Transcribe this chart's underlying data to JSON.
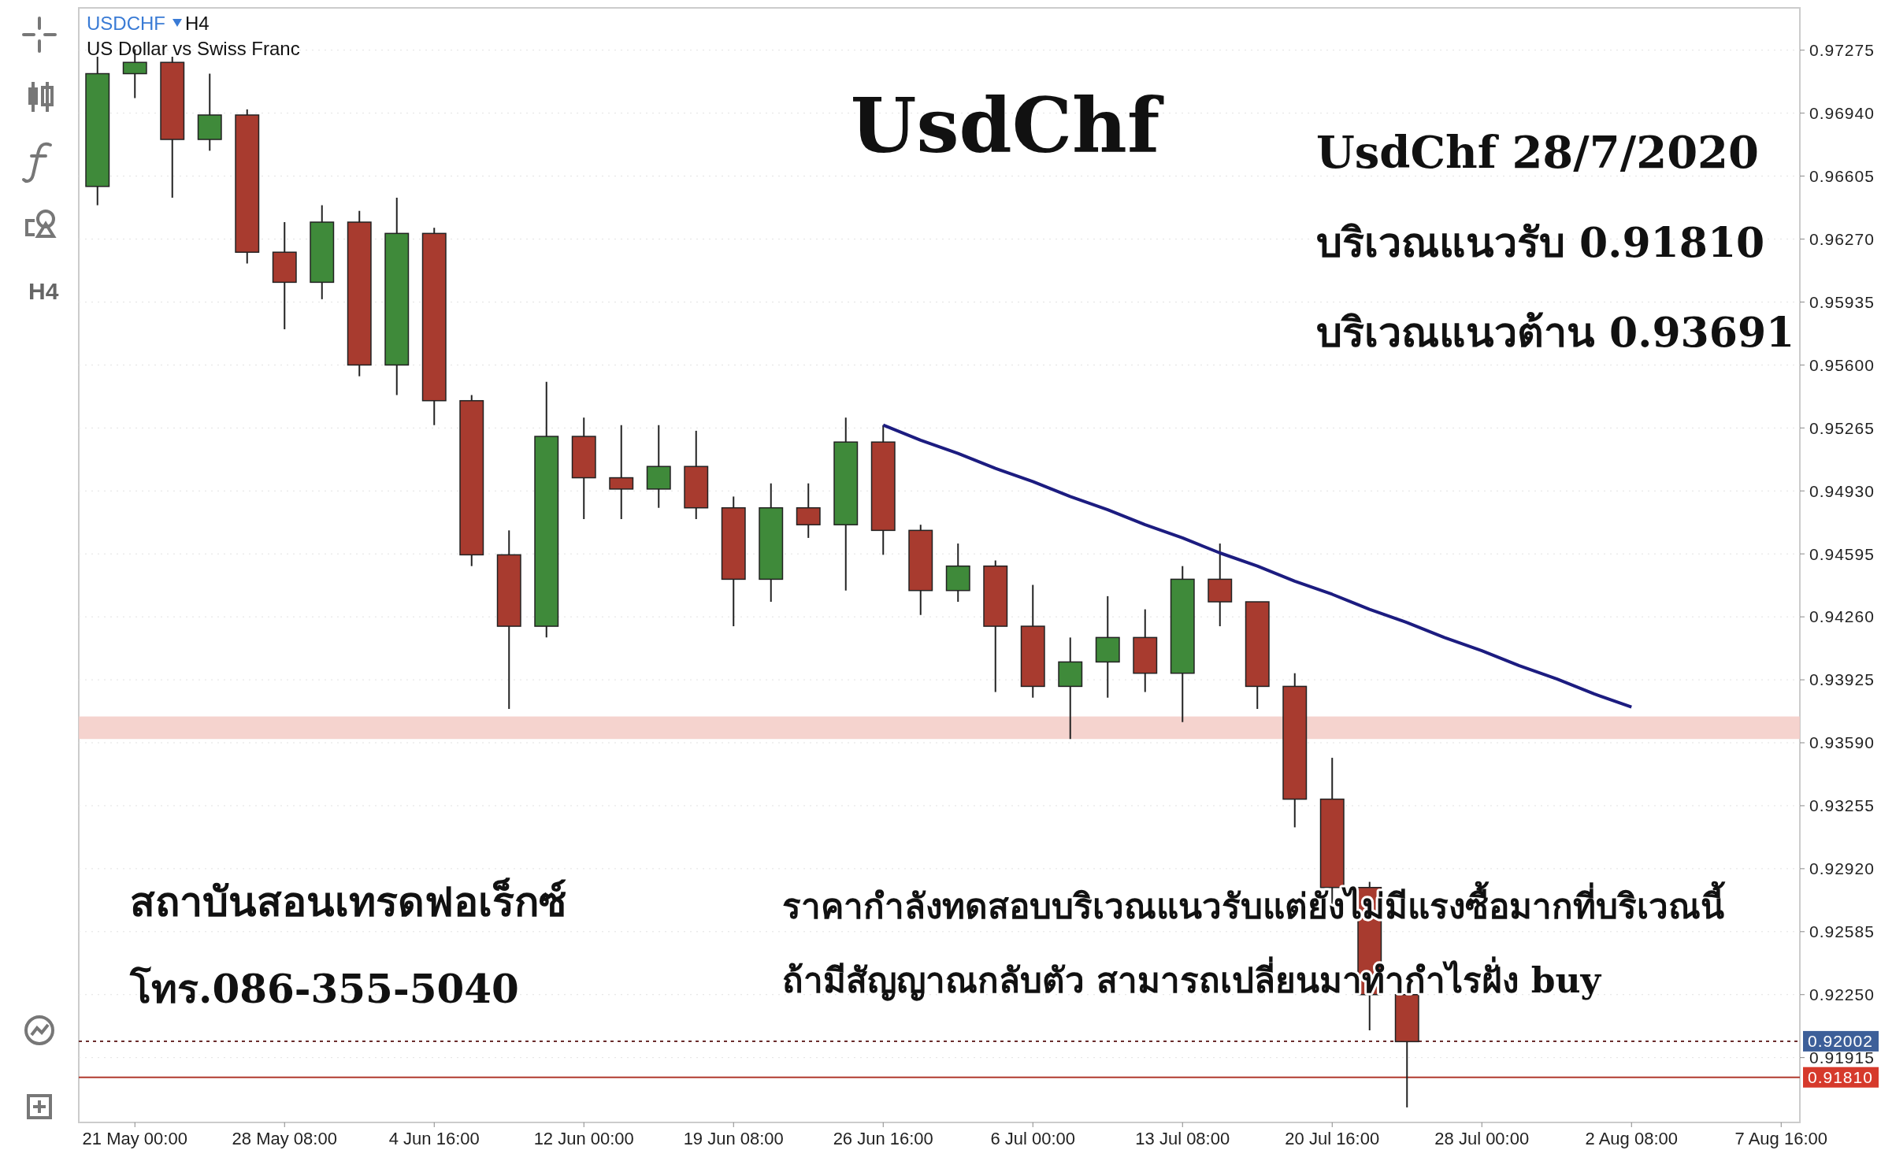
{
  "chart_data": {
    "type": "candlestick",
    "title": "UsdChf",
    "subtitle": "US Dollar vs Swiss Franc",
    "annotations": [
      "USDCHF",
      "H4",
      "UsdChf 28/7/2020",
      "บริเวณแนวรับ 0.91810",
      "บริเวณแนวต้าน 0.93691",
      "สถาบันสอนเทรดฟอเร็กซ์",
      "โทร.086-355-5040",
      "ราคากำลังทดสอบบริเวณแนวรับแต่ยังไม่มีแรงซื้อมากที่บริเวณนี้",
      "ถ้ามีสัญญาณกลับตัว สามารถเปลี่ยนมาทำกำไรฝั่ง buy",
      "H4"
    ],
    "categories": [
      null,
      "21 May 00:00",
      null,
      null,
      null,
      "28 May 08:00",
      null,
      null,
      null,
      "4 Jun 16:00",
      null,
      null,
      null,
      "12 Jun 00:00",
      null,
      null,
      null,
      "19 Jun 08:00",
      null,
      null,
      null,
      "26 Jun 16:00",
      null,
      null,
      null,
      "6 Jul 00:00",
      null,
      null,
      null,
      "13 Jul 08:00",
      null,
      null,
      null,
      "20 Jul 16:00",
      null,
      null,
      null,
      "28 Jul 00:00",
      null,
      null,
      null,
      "2 Aug 08:00",
      null,
      null,
      null,
      "7 Aug 16:00"
    ],
    "ohlc": [
      [
        0.9655,
        0.9724,
        0.9645,
        0.9715
      ],
      [
        0.9715,
        0.9728,
        0.9702,
        0.9721
      ],
      [
        0.9721,
        0.9724,
        0.9649,
        0.968
      ],
      [
        0.968,
        0.9715,
        0.9674,
        0.9693
      ],
      [
        0.9693,
        0.9696,
        0.9614,
        0.962
      ],
      [
        0.962,
        0.9636,
        0.9579,
        0.9604
      ],
      [
        0.9604,
        0.9645,
        0.9595,
        0.9636
      ],
      [
        0.9636,
        0.9642,
        0.9554,
        0.956
      ],
      [
        0.956,
        0.9649,
        0.9544,
        0.963
      ],
      [
        0.963,
        0.9633,
        0.9528,
        0.9541
      ],
      [
        0.9541,
        0.9544,
        0.9453,
        0.9459
      ],
      [
        0.9459,
        0.9472,
        0.9377,
        0.9421
      ],
      [
        0.9421,
        0.9551,
        0.9415,
        0.9522
      ],
      [
        0.9522,
        0.9532,
        0.9478,
        0.95
      ],
      [
        0.95,
        0.9528,
        0.9478,
        0.9494
      ],
      [
        0.9494,
        0.9528,
        0.9484,
        0.9506
      ],
      [
        0.9506,
        0.9525,
        0.9478,
        0.9484
      ],
      [
        0.9484,
        0.949,
        0.9421,
        0.9446
      ],
      [
        0.9446,
        0.9497,
        0.9434,
        0.9484
      ],
      [
        0.9484,
        0.9497,
        0.9468,
        0.9475
      ],
      [
        0.9475,
        0.9532,
        0.944,
        0.9519
      ],
      [
        0.9519,
        0.9528,
        0.9459,
        0.9472
      ],
      [
        0.9472,
        0.9475,
        0.9427,
        0.944
      ],
      [
        0.944,
        0.9465,
        0.9434,
        0.9453
      ],
      [
        0.9453,
        0.9456,
        0.9386,
        0.9421
      ],
      [
        0.9421,
        0.9443,
        0.9383,
        0.9389
      ],
      [
        0.9389,
        0.9415,
        0.9361,
        0.9402
      ],
      [
        0.9402,
        0.9437,
        0.9383,
        0.9415
      ],
      [
        0.9415,
        0.943,
        0.9386,
        0.9396
      ],
      [
        0.9396,
        0.9453,
        0.937,
        0.9446
      ],
      [
        0.9446,
        0.9465,
        0.9421,
        0.9434
      ],
      [
        0.9434,
        0.9434,
        0.9377,
        0.9389
      ],
      [
        0.9389,
        0.9396,
        0.9314,
        0.9329
      ],
      [
        0.9329,
        0.9351,
        0.9269,
        0.9282
      ],
      [
        0.9282,
        0.9285,
        0.9206,
        0.9225
      ],
      [
        0.9225,
        0.9231,
        0.9165,
        0.92
      ],
      null,
      null,
      null,
      null,
      null,
      null,
      null,
      null,
      null,
      null
    ],
    "series": [
      {
        "type": "line",
        "color": "#1c1c80",
        "values": [
          null,
          null,
          null,
          null,
          null,
          null,
          null,
          null,
          null,
          null,
          null,
          null,
          null,
          null,
          null,
          null,
          null,
          null,
          null,
          null,
          null,
          0.9528,
          0.952,
          0.9513,
          0.9505,
          0.9498,
          0.949,
          0.9483,
          0.9475,
          0.9468,
          0.946,
          0.9453,
          0.9445,
          0.9438,
          0.943,
          0.9423,
          0.9415,
          0.9408,
          0.94,
          0.9393,
          0.9385,
          0.9378,
          null,
          null,
          null,
          null
        ]
      }
    ],
    "ylim": [
      0.9157,
      0.975
    ],
    "yticks": [
      0.97275,
      {
        "value": 0.9694,
        "label": "0.96940"
      },
      0.96605,
      {
        "value": 0.9627,
        "label": "0.96270"
      },
      0.95935,
      {
        "value": 0.956,
        "label": "0.95600"
      },
      0.95265,
      {
        "value": 0.9493,
        "label": "0.94930"
      },
      0.94595,
      {
        "value": 0.9426,
        "label": "0.94260"
      },
      0.93925,
      {
        "value": 0.9359,
        "label": "0.93590"
      },
      0.93255,
      {
        "value": 0.9292,
        "label": "0.92920"
      },
      0.92585,
      {
        "value": 0.9225,
        "label": "0.92250"
      },
      0.91915
    ],
    "ref_lines": [
      {
        "axis": "y",
        "value": 0.92002,
        "label": "0.92002",
        "color": "#6b2d2d",
        "line_style": "dotted"
      },
      {
        "axis": "y",
        "value": 0.9181,
        "label": "0.91810",
        "color": "#b03a2e",
        "line_style": "solid"
      }
    ],
    "bands": [
      {
        "axis": "y",
        "from": 0.9361,
        "to": 0.9373,
        "color": "#f3cbc6"
      }
    ],
    "grid": true
  }
}
